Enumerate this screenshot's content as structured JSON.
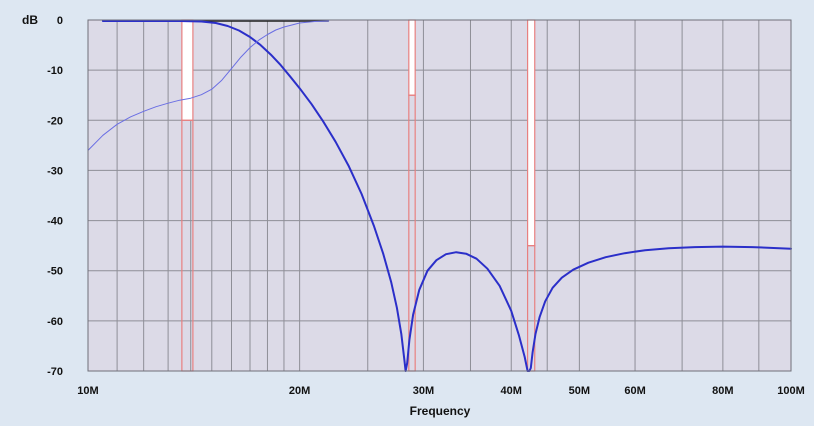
{
  "chart_data": {
    "type": "line",
    "title": "",
    "xlabel": "Frequency",
    "ylabel": "dB",
    "x_scale": "log",
    "xlim": [
      "10M",
      "100M"
    ],
    "ylim": [
      -70,
      0
    ],
    "x_ticks": [
      {
        "label": "10M",
        "value": 10
      },
      {
        "label": "20M",
        "value": 20
      },
      {
        "label": "30M",
        "value": 30
      },
      {
        "label": "40M",
        "value": 40
      },
      {
        "label": "50M",
        "value": 50
      },
      {
        "label": "60M",
        "value": 60
      },
      {
        "label": "80M",
        "value": 80
      },
      {
        "label": "100M",
        "value": 100
      }
    ],
    "y_ticks": [
      0,
      -10,
      -20,
      -30,
      -40,
      -50,
      -60,
      -70
    ],
    "y_tick_labels": [
      "0",
      "-10",
      "-20",
      "-30",
      "-40",
      "-50",
      "-60",
      "-70"
    ],
    "grid": true,
    "minor_x_grid": [
      11,
      12,
      13,
      14,
      15,
      16,
      17,
      18,
      19,
      25,
      35,
      45,
      70,
      90
    ],
    "series": [
      {
        "color": "#2b2fc9",
        "width": 2,
        "x": [
          10.5,
          12,
          13.5,
          14.5,
          15.2,
          15.8,
          16.4,
          17,
          17.6,
          18.2,
          18.8,
          19.4,
          20,
          20.8,
          21.6,
          22.5,
          23.5,
          24.5,
          25.5,
          26.3,
          27,
          27.5,
          27.9,
          28.2,
          28.3,
          28.45,
          28.65,
          29,
          29.6,
          30.4,
          31.3,
          32.3,
          33.4,
          34.5,
          35.7,
          37,
          38.5,
          40,
          41,
          41.8,
          42.2,
          42.45,
          42.65,
          42.9,
          43.3,
          43.9,
          44.7,
          45.8,
          47.2,
          49,
          51.5,
          54.5,
          58,
          62,
          67,
          73,
          80,
          88,
          100
        ],
        "y": [
          -0.2,
          -0.2,
          -0.2,
          -0.3,
          -0.6,
          -1.2,
          -2.1,
          -3.4,
          -5.0,
          -6.9,
          -9.0,
          -11.3,
          -13.6,
          -16.8,
          -20.2,
          -24.3,
          -29.2,
          -34.7,
          -41.0,
          -46.6,
          -52.3,
          -57.4,
          -62.6,
          -68.0,
          -70,
          -68.4,
          -63.8,
          -58.8,
          -53.8,
          -50.0,
          -47.9,
          -46.7,
          -46.3,
          -46.6,
          -47.6,
          -49.6,
          -53.0,
          -58.0,
          -62.8,
          -67.2,
          -70,
          -70,
          -69.4,
          -66.3,
          -62.6,
          -59.2,
          -56.1,
          -53.4,
          -51.4,
          -49.8,
          -48.4,
          -47.3,
          -46.5,
          -45.9,
          -45.5,
          -45.3,
          -45.2,
          -45.3,
          -45.6
        ]
      },
      {
        "color": "#6a6ee3",
        "width": 1,
        "x": [
          10,
          10.5,
          11,
          11.5,
          12,
          12.5,
          13,
          13.5,
          14,
          14.5,
          15,
          15.5,
          16,
          16.5,
          17,
          17.5,
          18,
          18.5,
          19,
          19.5,
          20,
          21,
          22
        ],
        "y": [
          -26.0,
          -23.0,
          -20.8,
          -19.3,
          -18.2,
          -17.3,
          -16.6,
          -16.0,
          -15.6,
          -14.9,
          -13.8,
          -12.0,
          -9.7,
          -7.4,
          -5.5,
          -4.0,
          -2.9,
          -2.0,
          -1.4,
          -1.0,
          -0.6,
          -0.3,
          -0.2
        ]
      }
    ],
    "markers": [
      {
        "x0": 13.6,
        "x1": 14.1,
        "top": 0,
        "level": -20,
        "bottom": -70
      },
      {
        "x0": 28.6,
        "x1": 29.2,
        "top": 0,
        "level": -15,
        "bottom": -70
      },
      {
        "x0": 42.2,
        "x1": 43.2,
        "top": 0,
        "level": -45,
        "bottom": -70
      }
    ],
    "colors": {
      "plot_background": "#dcdae7",
      "outer_background": "#dde7f2",
      "grid": "#8e8e97",
      "marker": "#e88080",
      "marker_fill": "#ffffff",
      "passband_line": "#1f1f1f"
    }
  }
}
